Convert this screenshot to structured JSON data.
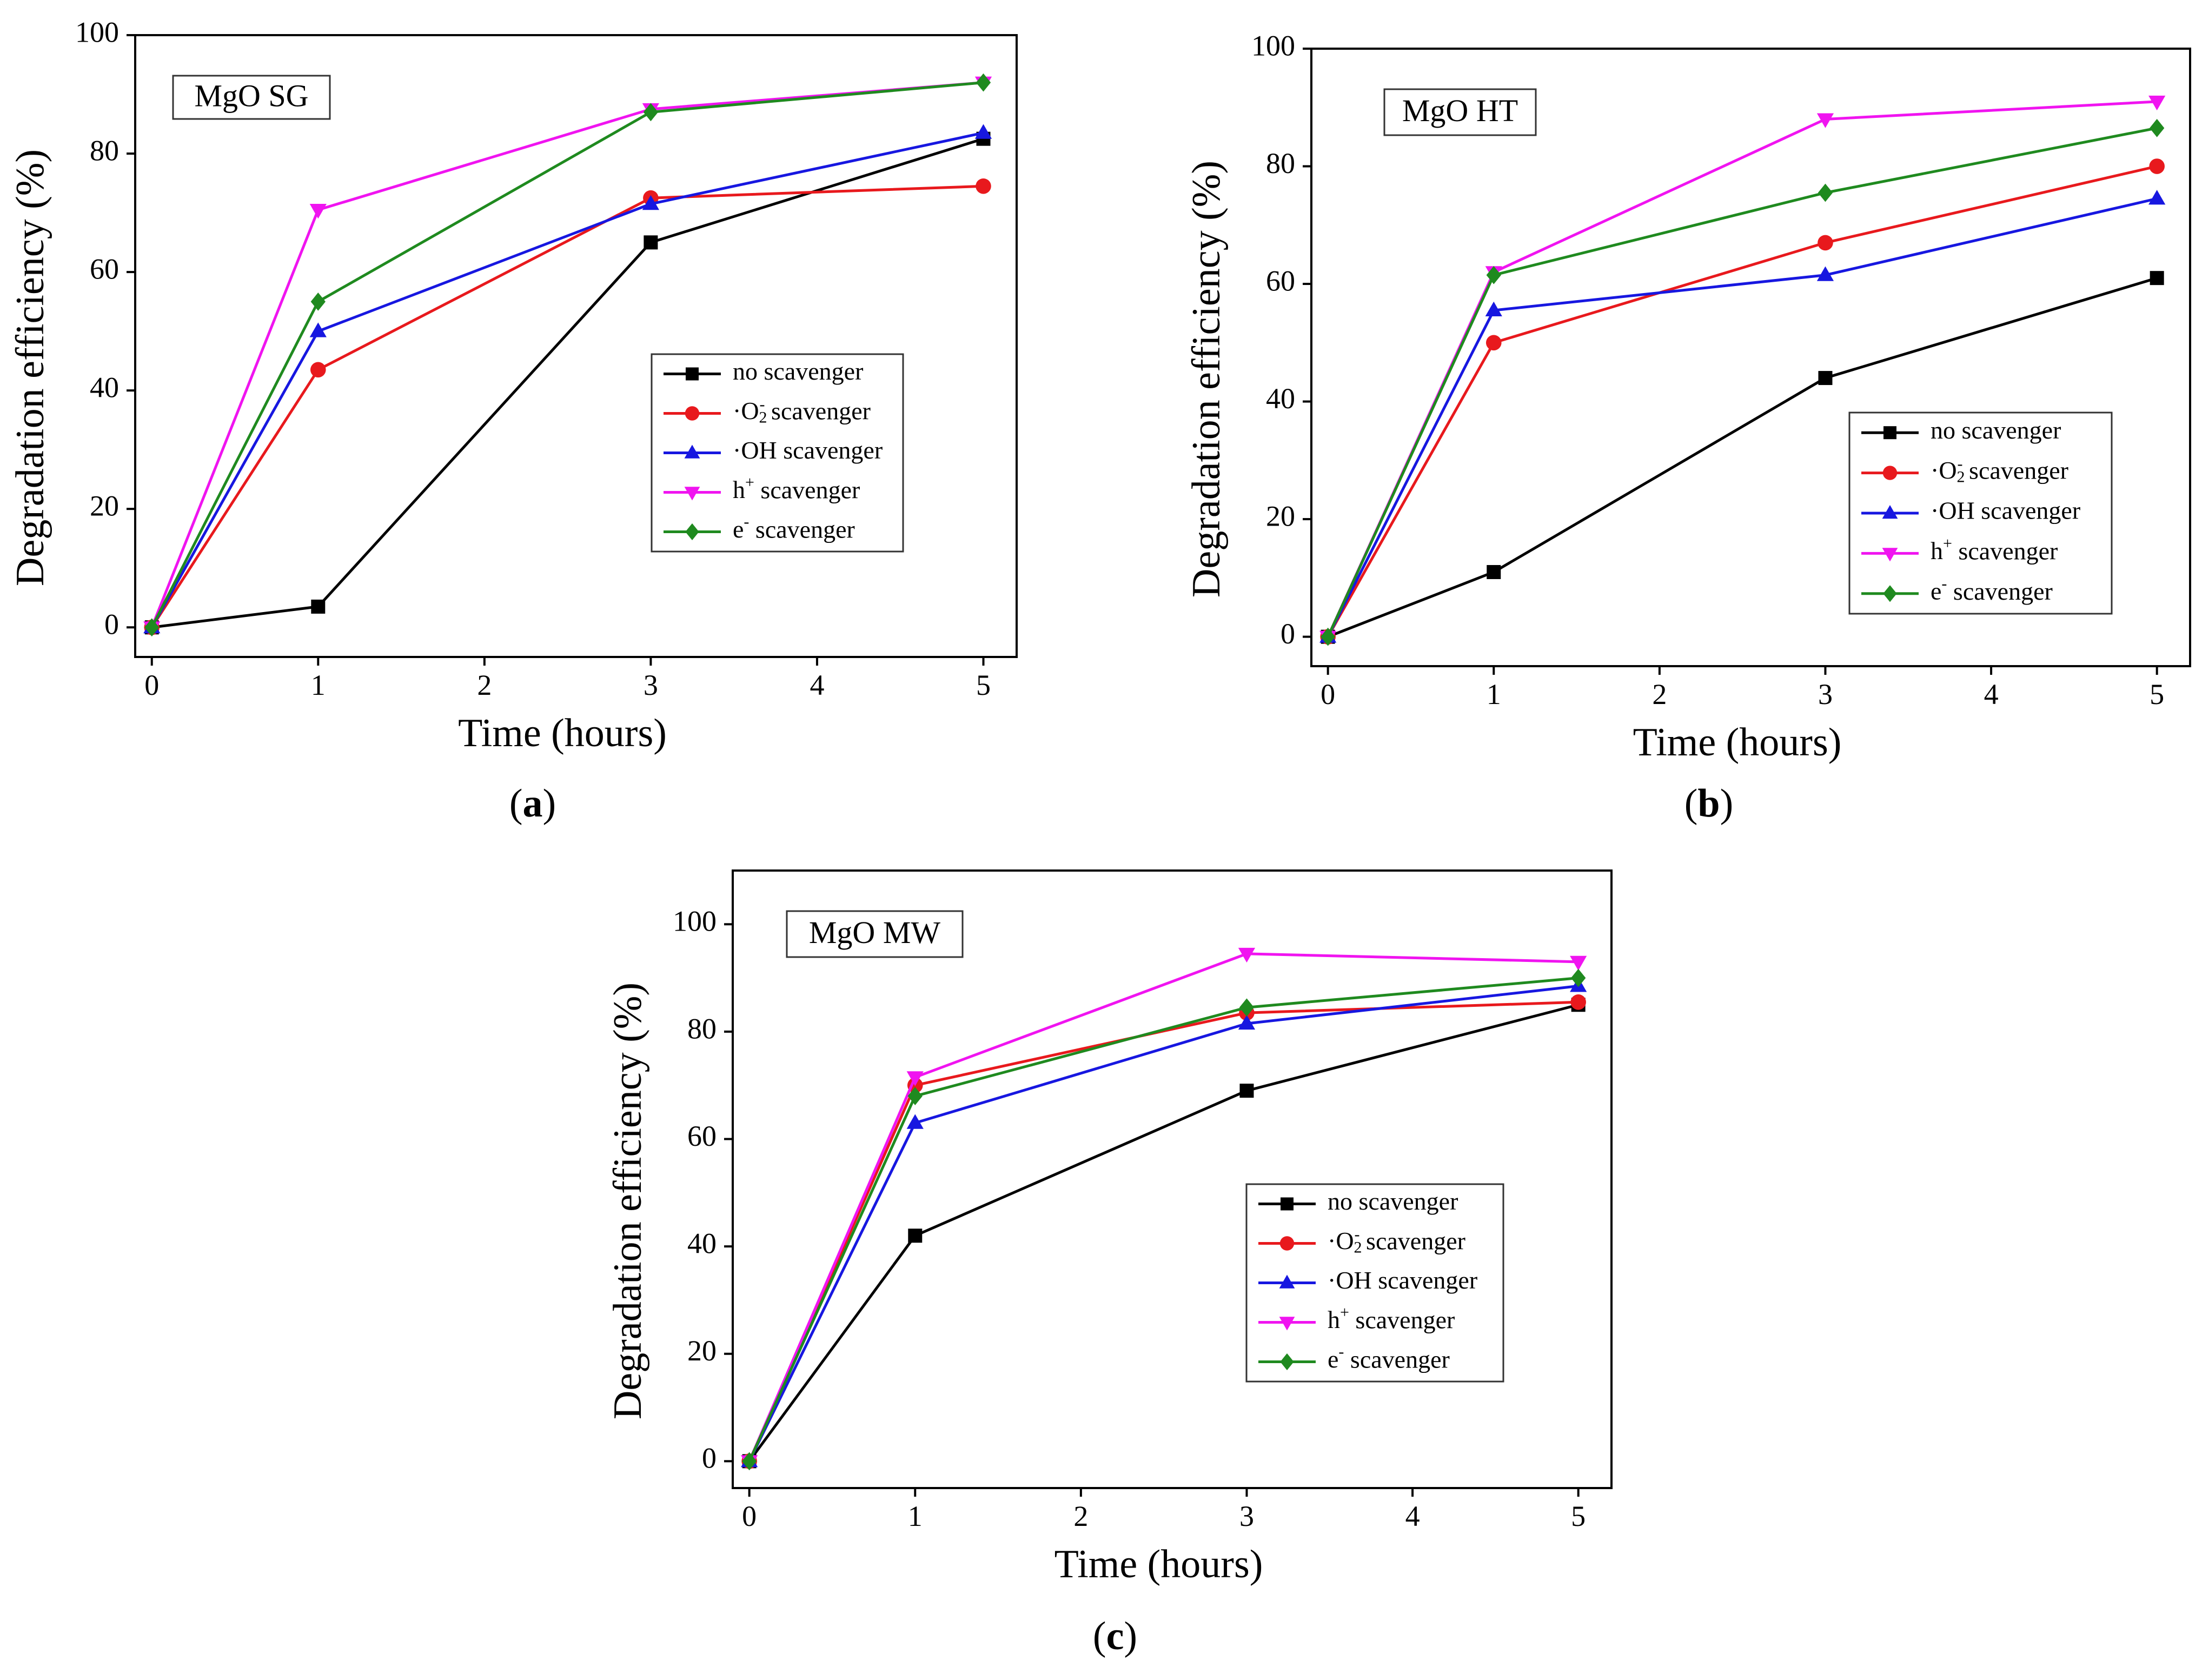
{
  "figure": {
    "series_styles": [
      {
        "name": "no scavenger",
        "color": "#000000",
        "marker": "square"
      },
      {
        "name": "·O2- scavenger",
        "color": "#e8191d",
        "marker": "circle"
      },
      {
        "name": "·OH scavenger",
        "color": "#1717e0",
        "marker": "triangle-up"
      },
      {
        "name": "h+ scavenger",
        "color": "#f014f0",
        "marker": "triangle-down"
      },
      {
        "name": "e- scavenger",
        "color": "#1f8a1f",
        "marker": "diamond"
      }
    ]
  },
  "chart_data": [
    {
      "id": "a",
      "panel_label": "a",
      "type": "line",
      "title": "MgO SG",
      "xlabel": "Time (hours)",
      "ylabel": "Degradation efficiency (%)",
      "xlim": [
        -0.1,
        5.2
      ],
      "ylim": [
        -5,
        100
      ],
      "xticks": [
        0,
        1,
        2,
        3,
        4,
        5
      ],
      "yticks": [
        0,
        20,
        40,
        60,
        80,
        100
      ],
      "legend_position": "center-right",
      "x": [
        0,
        1,
        3,
        5
      ],
      "series": [
        {
          "name": "no scavenger",
          "values": [
            0,
            3.5,
            65,
            82.5
          ]
        },
        {
          "name": "·O2- scavenger",
          "values": [
            0,
            43.5,
            72.5,
            74.5
          ]
        },
        {
          "name": "·OH scavenger",
          "values": [
            0,
            50,
            71.5,
            83.5
          ]
        },
        {
          "name": "h+ scavenger",
          "values": [
            0,
            70.5,
            87.5,
            92
          ]
        },
        {
          "name": "e- scavenger",
          "values": [
            0,
            55,
            87,
            92
          ]
        }
      ]
    },
    {
      "id": "b",
      "panel_label": "b",
      "type": "line",
      "title": "MgO HT",
      "xlabel": "Time (hours)",
      "ylabel": "Degradation efficiency (%)",
      "xlim": [
        -0.1,
        5.2
      ],
      "ylim": [
        -5,
        100
      ],
      "xticks": [
        0,
        1,
        2,
        3,
        4,
        5
      ],
      "yticks": [
        0,
        20,
        40,
        60,
        80,
        100
      ],
      "legend_position": "bottom-right",
      "x": [
        0,
        1,
        3,
        5
      ],
      "series": [
        {
          "name": "no scavenger",
          "values": [
            0,
            11,
            44,
            61
          ]
        },
        {
          "name": "·O2- scavenger",
          "values": [
            0,
            50,
            67,
            80
          ]
        },
        {
          "name": "·OH scavenger",
          "values": [
            0,
            55.5,
            61.5,
            74.5
          ]
        },
        {
          "name": "h+ scavenger",
          "values": [
            0,
            62,
            88,
            91
          ]
        },
        {
          "name": "e- scavenger",
          "values": [
            0,
            61.5,
            75.5,
            86.5
          ]
        }
      ]
    },
    {
      "id": "c",
      "panel_label": "c",
      "type": "line",
      "title": "MgO MW",
      "xlabel": "Time (hours)",
      "ylabel": "Degradation efficiency (%)",
      "xlim": [
        -0.1,
        5.2
      ],
      "ylim": [
        -5,
        110
      ],
      "xticks": [
        0,
        1,
        2,
        3,
        4,
        5
      ],
      "yticks": [
        0,
        20,
        40,
        60,
        80,
        100
      ],
      "legend_position": "bottom-right",
      "x": [
        0,
        1,
        3,
        5
      ],
      "series": [
        {
          "name": "no scavenger",
          "values": [
            0,
            42,
            69,
            85
          ]
        },
        {
          "name": "·O2- scavenger",
          "values": [
            0,
            70,
            83.5,
            85.5
          ]
        },
        {
          "name": "·OH scavenger",
          "values": [
            0,
            63,
            81.5,
            88.5
          ]
        },
        {
          "name": "h+ scavenger",
          "values": [
            0,
            71.5,
            94.5,
            93
          ]
        },
        {
          "name": "e- scavenger",
          "values": [
            0,
            68,
            84.5,
            90
          ]
        }
      ]
    }
  ]
}
